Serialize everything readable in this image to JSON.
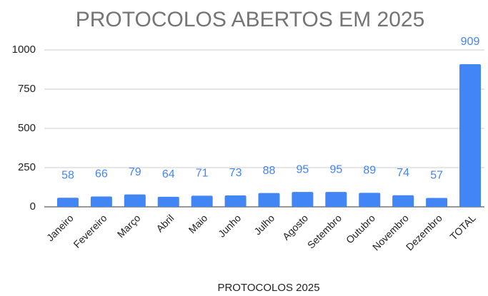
{
  "chart_data": {
    "type": "bar",
    "title": "PROTOCOLOS ABERTOS EM 2025",
    "x_label": "PROTOCOLOS 2025",
    "categories": [
      "Janeiro",
      "Fevereiro",
      "Março",
      "Abril",
      "Maio",
      "Junho",
      "Julho",
      "Agosto",
      "Setembro",
      "Outubro",
      "Novembro",
      "Dezembro",
      "TOTAL"
    ],
    "values": [
      58,
      66,
      79,
      64,
      71,
      73,
      88,
      95,
      95,
      89,
      74,
      57,
      909
    ],
    "color": "#4285f4",
    "ylim": [
      0,
      1000
    ],
    "yticks": [
      0,
      250,
      500,
      750,
      1000
    ],
    "grid": true
  }
}
